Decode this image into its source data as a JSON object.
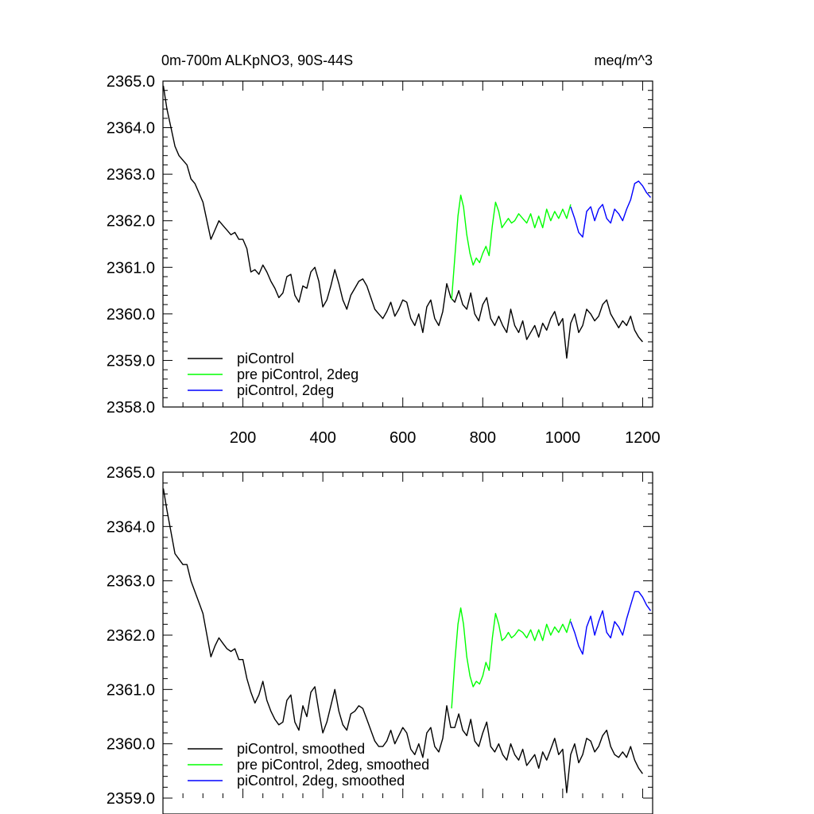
{
  "chart_data": [
    {
      "type": "line",
      "title_left": "0m-700m ALKpNO3, 90S-44S",
      "title_right": "meq/m^3",
      "xlim": [
        0,
        1225
      ],
      "ylim": [
        2358.0,
        2365.0
      ],
      "x_ticks": [
        200,
        400,
        600,
        800,
        1000,
        1200
      ],
      "x_tick_labels": [
        "200",
        "400",
        "600",
        "800",
        "1000",
        "1200"
      ],
      "y_ticks": [
        2358.0,
        2359.0,
        2360.0,
        2361.0,
        2362.0,
        2363.0,
        2364.0,
        2365.0
      ],
      "y_tick_labels": [
        "2358.0",
        "2359.0",
        "2360.0",
        "2361.0",
        "2362.0",
        "2363.0",
        "2364.0",
        "2365.0"
      ],
      "legend_position": "bottom-left",
      "series": [
        {
          "name": "piControl",
          "color": "#000000",
          "x": [
            1,
            10,
            20,
            30,
            40,
            50,
            60,
            70,
            80,
            90,
            100,
            110,
            120,
            130,
            140,
            150,
            160,
            170,
            180,
            190,
            200,
            210,
            220,
            230,
            240,
            250,
            260,
            270,
            280,
            290,
            300,
            310,
            320,
            330,
            340,
            350,
            360,
            370,
            380,
            390,
            400,
            410,
            420,
            430,
            440,
            450,
            460,
            470,
            480,
            490,
            500,
            510,
            520,
            530,
            540,
            550,
            560,
            570,
            580,
            590,
            600,
            610,
            620,
            630,
            640,
            650,
            660,
            670,
            680,
            690,
            700,
            710,
            720,
            730,
            740,
            750,
            760,
            770,
            780,
            790,
            800,
            810,
            820,
            830,
            840,
            850,
            860,
            870,
            880,
            890,
            900,
            910,
            920,
            930,
            940,
            950,
            960,
            970,
            980,
            990,
            1000,
            1010,
            1020,
            1030,
            1040,
            1050,
            1060,
            1070,
            1080,
            1090,
            1100,
            1110,
            1120,
            1130,
            1140,
            1150,
            1160,
            1170,
            1180,
            1190,
            1200
          ],
          "y": [
            2364.9,
            2364.4,
            2364.0,
            2363.6,
            2363.4,
            2363.3,
            2363.2,
            2362.9,
            2362.8,
            2362.6,
            2362.4,
            2362.0,
            2361.6,
            2361.8,
            2362.0,
            2361.9,
            2361.8,
            2361.7,
            2361.75,
            2361.6,
            2361.6,
            2361.4,
            2360.9,
            2360.95,
            2360.85,
            2361.05,
            2360.9,
            2360.7,
            2360.55,
            2360.35,
            2360.45,
            2360.8,
            2360.85,
            2360.4,
            2360.25,
            2360.6,
            2360.55,
            2360.9,
            2361.0,
            2360.7,
            2360.15,
            2360.3,
            2360.6,
            2360.95,
            2360.65,
            2360.3,
            2360.1,
            2360.4,
            2360.55,
            2360.7,
            2360.75,
            2360.6,
            2360.35,
            2360.1,
            2360.0,
            2359.9,
            2360.05,
            2360.25,
            2359.95,
            2360.1,
            2360.3,
            2360.25,
            2359.9,
            2359.75,
            2360.0,
            2359.6,
            2360.15,
            2360.3,
            2359.9,
            2359.75,
            2360.05,
            2360.65,
            2360.35,
            2360.25,
            2360.5,
            2360.2,
            2360.1,
            2360.45,
            2360.0,
            2359.85,
            2360.2,
            2360.35,
            2359.9,
            2359.75,
            2359.95,
            2359.75,
            2359.6,
            2360.1,
            2359.75,
            2359.6,
            2359.85,
            2359.45,
            2359.6,
            2359.75,
            2359.5,
            2359.8,
            2359.65,
            2359.9,
            2360.05,
            2359.75,
            2359.9,
            2359.05,
            2359.8,
            2360.0,
            2359.6,
            2359.75,
            2360.1,
            2360.0,
            2359.85,
            2359.95,
            2360.2,
            2360.3,
            2360.0,
            2359.85,
            2359.7,
            2359.85,
            2359.75,
            2359.95,
            2359.65,
            2359.5,
            2359.4
          ]
        },
        {
          "name": "pre piControl, 2deg",
          "color": "#00ff00",
          "x": [
            722,
            730,
            738,
            745,
            752,
            760,
            768,
            776,
            784,
            792,
            800,
            808,
            816,
            824,
            832,
            840,
            848,
            856,
            864,
            872,
            880,
            890,
            900,
            910,
            920,
            930,
            940,
            950,
            960,
            970,
            980,
            990,
            1000,
            1010,
            1020
          ],
          "y": [
            2360.3,
            2361.2,
            2362.1,
            2362.55,
            2362.3,
            2361.7,
            2361.3,
            2361.05,
            2361.2,
            2361.1,
            2361.3,
            2361.45,
            2361.25,
            2361.9,
            2362.4,
            2362.2,
            2361.85,
            2361.95,
            2362.05,
            2361.95,
            2362.0,
            2362.15,
            2362.05,
            2361.95,
            2362.15,
            2361.85,
            2362.1,
            2361.85,
            2362.25,
            2362.0,
            2362.2,
            2362.05,
            2362.25,
            2362.05,
            2362.35
          ]
        },
        {
          "name": "piControl, 2deg",
          "color": "#0000ff",
          "x": [
            1020,
            1030,
            1040,
            1050,
            1060,
            1070,
            1080,
            1090,
            1100,
            1110,
            1120,
            1130,
            1140,
            1150,
            1160,
            1170,
            1180,
            1190,
            1200,
            1210,
            1220
          ],
          "y": [
            2362.3,
            2362.05,
            2361.75,
            2361.65,
            2362.2,
            2362.3,
            2362.0,
            2362.25,
            2362.35,
            2362.05,
            2361.95,
            2362.25,
            2362.15,
            2362.0,
            2362.25,
            2362.45,
            2362.8,
            2362.85,
            2362.75,
            2362.6,
            2362.5
          ]
        }
      ]
    },
    {
      "type": "line",
      "xlim": [
        0,
        1225
      ],
      "ylim": [
        2359.0,
        2365.0
      ],
      "y_ticks": [
        2359.0,
        2360.0,
        2361.0,
        2362.0,
        2363.0,
        2364.0,
        2365.0
      ],
      "y_tick_labels": [
        "2359.0",
        "2360.0",
        "2361.0",
        "2362.0",
        "2363.0",
        "2364.0",
        "2365.0"
      ],
      "legend_position": "bottom-left",
      "series": [
        {
          "name": "piControl, smoothed",
          "color": "#000000",
          "x": [
            1,
            10,
            20,
            30,
            40,
            50,
            60,
            70,
            80,
            90,
            100,
            110,
            120,
            130,
            140,
            150,
            160,
            170,
            180,
            190,
            200,
            210,
            220,
            230,
            240,
            250,
            260,
            270,
            280,
            290,
            300,
            310,
            320,
            330,
            340,
            350,
            360,
            370,
            380,
            390,
            400,
            410,
            420,
            430,
            440,
            450,
            460,
            470,
            480,
            490,
            500,
            510,
            520,
            530,
            540,
            550,
            560,
            570,
            580,
            590,
            600,
            610,
            620,
            630,
            640,
            650,
            660,
            670,
            680,
            690,
            700,
            710,
            720,
            730,
            740,
            750,
            760,
            770,
            780,
            790,
            800,
            810,
            820,
            830,
            840,
            850,
            860,
            870,
            880,
            890,
            900,
            910,
            920,
            930,
            940,
            950,
            960,
            970,
            980,
            990,
            1000,
            1010,
            1020,
            1030,
            1040,
            1050,
            1060,
            1070,
            1080,
            1090,
            1100,
            1110,
            1120,
            1130,
            1140,
            1150,
            1160,
            1170,
            1180,
            1190,
            1200
          ],
          "y": [
            2364.7,
            2364.3,
            2363.9,
            2363.5,
            2363.4,
            2363.3,
            2363.3,
            2363.0,
            2362.8,
            2362.6,
            2362.4,
            2362.0,
            2361.6,
            2361.8,
            2361.95,
            2361.85,
            2361.75,
            2361.7,
            2361.75,
            2361.55,
            2361.55,
            2361.2,
            2360.95,
            2360.75,
            2360.9,
            2361.15,
            2360.8,
            2360.6,
            2360.45,
            2360.35,
            2360.4,
            2360.8,
            2360.9,
            2360.4,
            2360.25,
            2360.7,
            2360.5,
            2360.95,
            2361.05,
            2360.6,
            2360.2,
            2360.4,
            2360.7,
            2361.0,
            2360.6,
            2360.35,
            2360.25,
            2360.55,
            2360.6,
            2360.7,
            2360.65,
            2360.45,
            2360.25,
            2360.05,
            2359.95,
            2359.95,
            2360.05,
            2360.25,
            2360.0,
            2360.15,
            2360.3,
            2360.2,
            2359.9,
            2359.8,
            2360.0,
            2359.75,
            2360.2,
            2360.3,
            2359.95,
            2359.85,
            2360.1,
            2360.7,
            2360.3,
            2360.3,
            2360.55,
            2360.25,
            2360.15,
            2360.45,
            2360.05,
            2359.95,
            2360.2,
            2360.4,
            2359.95,
            2359.85,
            2360.0,
            2359.8,
            2359.7,
            2360.0,
            2359.8,
            2359.7,
            2359.9,
            2359.6,
            2359.7,
            2359.8,
            2359.55,
            2359.85,
            2359.7,
            2359.9,
            2360.1,
            2359.8,
            2359.9,
            2359.1,
            2359.8,
            2360.0,
            2359.65,
            2359.8,
            2360.1,
            2360.05,
            2359.85,
            2359.95,
            2360.15,
            2360.25,
            2359.95,
            2359.8,
            2359.75,
            2359.85,
            2359.75,
            2359.95,
            2359.7,
            2359.55,
            2359.45
          ]
        },
        {
          "name": "pre piControl, 2deg, smoothed",
          "color": "#00ff00",
          "x": [
            722,
            730,
            738,
            745,
            752,
            760,
            768,
            776,
            784,
            792,
            800,
            808,
            816,
            824,
            832,
            840,
            848,
            856,
            864,
            872,
            880,
            890,
            900,
            910,
            920,
            930,
            940,
            950,
            960,
            970,
            980,
            990,
            1000,
            1010,
            1020
          ],
          "y": [
            2360.65,
            2361.5,
            2362.2,
            2362.5,
            2362.2,
            2361.6,
            2361.25,
            2361.05,
            2361.15,
            2361.1,
            2361.25,
            2361.5,
            2361.35,
            2361.95,
            2362.4,
            2362.2,
            2361.9,
            2361.95,
            2362.05,
            2361.95,
            2362.0,
            2362.1,
            2362.05,
            2361.95,
            2362.1,
            2361.9,
            2362.1,
            2361.9,
            2362.2,
            2362.0,
            2362.15,
            2362.05,
            2362.2,
            2362.05,
            2362.3
          ]
        },
        {
          "name": "piControl, 2deg, smoothed",
          "color": "#0000ff",
          "x": [
            1020,
            1030,
            1040,
            1050,
            1060,
            1070,
            1080,
            1090,
            1100,
            1110,
            1120,
            1130,
            1140,
            1150,
            1160,
            1170,
            1180,
            1190,
            1200,
            1210,
            1220
          ],
          "y": [
            2362.25,
            2362.05,
            2361.8,
            2361.65,
            2362.15,
            2362.35,
            2362.0,
            2362.25,
            2362.45,
            2362.05,
            2361.95,
            2362.25,
            2362.15,
            2362.0,
            2362.3,
            2362.55,
            2362.8,
            2362.8,
            2362.7,
            2362.55,
            2362.45
          ]
        }
      ]
    }
  ]
}
